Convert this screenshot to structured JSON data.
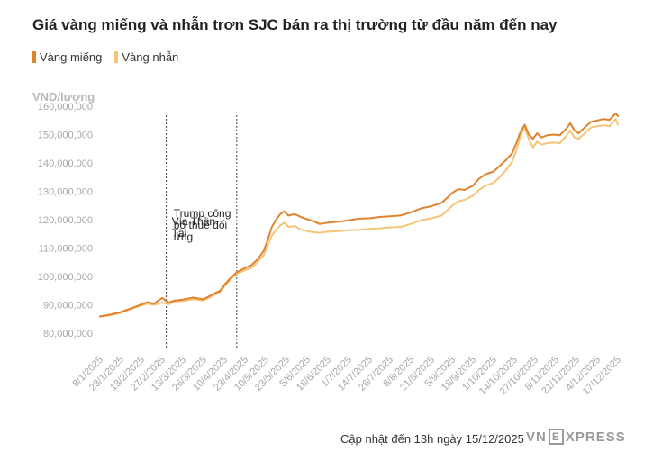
{
  "title": "Giá vàng miếng và nhẫn trơn SJC bán ra thị trường từ đầu năm đến nay",
  "legend": [
    {
      "label": "Vàng miếng",
      "color": "#e0832f"
    },
    {
      "label": "Vàng nhẫn",
      "color": "#f5c477"
    }
  ],
  "footer": "Cập nhật đến 13h ngày 15/12/2025",
  "brand": {
    "left": "VN",
    "box": "E",
    "right": "XPRESS"
  },
  "chart_data": {
    "type": "line",
    "title": "Giá vàng miếng và nhẫn trơn SJC bán ra thị trường từ đầu năm đến nay",
    "ylabel": "VND/lượng",
    "xlabel": "",
    "ylim": [
      75000000,
      160000000
    ],
    "y_ticks": [
      80000000,
      90000000,
      100000000,
      110000000,
      120000000,
      130000000,
      140000000,
      150000000,
      160000000
    ],
    "y_tick_labels": [
      "80,000,000",
      "90,000,000",
      "100,000,000",
      "110,000,000",
      "120,000,000",
      "130,000,000",
      "140,000,000",
      "150,000,000",
      "160,000,000"
    ],
    "x_tick_labels": [
      "8/1/2025",
      "23/1/2025",
      "13/2/2025",
      "27/2/2025",
      "13/3/2025",
      "26/3/2025",
      "10/4/2025",
      "23/4/2025",
      "10/5/2025",
      "23/5/2025",
      "5/6/2025",
      "18/6/2025",
      "1/7/2025",
      "14/7/2025",
      "26/7/2025",
      "8/8/2025",
      "21/8/2025",
      "5/9/2025",
      "18/9/2025",
      "1/10/2025",
      "14/10/2025",
      "27/10/2025",
      "8/11/2025",
      "21/11/2025",
      "4/12/2025",
      "17/12/2025"
    ],
    "x_range": [
      0,
      25
    ],
    "grid": false,
    "annotations": [
      {
        "x": 3.2,
        "text_lines": [
          "Vía Thần",
          "Tài"
        ]
      },
      {
        "x": 6.6,
        "text_lines": [
          "Trump công",
          "bố thuế đối",
          "ứng"
        ]
      }
    ],
    "series": [
      {
        "name": "Vàng miếng",
        "color": "#e0832f",
        "points": [
          [
            0,
            86000000
          ],
          [
            0.5,
            86600000
          ],
          [
            1,
            87500000
          ],
          [
            1.5,
            88800000
          ],
          [
            2,
            90200000
          ],
          [
            2.3,
            91000000
          ],
          [
            2.6,
            90400000
          ],
          [
            3,
            92500000
          ],
          [
            3.3,
            90800000
          ],
          [
            3.6,
            91600000
          ],
          [
            4,
            91900000
          ],
          [
            4.5,
            92600000
          ],
          [
            5,
            92000000
          ],
          [
            5.5,
            94000000
          ],
          [
            5.8,
            95000000
          ],
          [
            6,
            97000000
          ],
          [
            6.3,
            99500000
          ],
          [
            6.6,
            101500000
          ],
          [
            7,
            103000000
          ],
          [
            7.3,
            104000000
          ],
          [
            7.6,
            106000000
          ],
          [
            7.9,
            109000000
          ],
          [
            8.1,
            113000000
          ],
          [
            8.3,
            117500000
          ],
          [
            8.5,
            120000000
          ],
          [
            8.7,
            122000000
          ],
          [
            8.9,
            123000000
          ],
          [
            9.1,
            121500000
          ],
          [
            9.4,
            122000000
          ],
          [
            9.7,
            121000000
          ],
          [
            10,
            120200000
          ],
          [
            10.3,
            119500000
          ],
          [
            10.6,
            118500000
          ],
          [
            11,
            119000000
          ],
          [
            11.5,
            119300000
          ],
          [
            12,
            119800000
          ],
          [
            12.5,
            120400000
          ],
          [
            13,
            120500000
          ],
          [
            13.5,
            121000000
          ],
          [
            14,
            121200000
          ],
          [
            14.5,
            121500000
          ],
          [
            15,
            122600000
          ],
          [
            15.5,
            124000000
          ],
          [
            16,
            124800000
          ],
          [
            16.5,
            126000000
          ],
          [
            16.8,
            128000000
          ],
          [
            17,
            129500000
          ],
          [
            17.3,
            130800000
          ],
          [
            17.6,
            130500000
          ],
          [
            18,
            132000000
          ],
          [
            18.3,
            134500000
          ],
          [
            18.6,
            136000000
          ],
          [
            19,
            137000000
          ],
          [
            19.3,
            139000000
          ],
          [
            19.6,
            141000000
          ],
          [
            19.9,
            143500000
          ],
          [
            20.1,
            147000000
          ],
          [
            20.3,
            151000000
          ],
          [
            20.5,
            153500000
          ],
          [
            20.7,
            150000000
          ],
          [
            20.9,
            148500000
          ],
          [
            21.1,
            150500000
          ],
          [
            21.3,
            149000000
          ],
          [
            21.6,
            149800000
          ],
          [
            21.9,
            150000000
          ],
          [
            22.2,
            149800000
          ],
          [
            22.5,
            152000000
          ],
          [
            22.7,
            154000000
          ],
          [
            22.9,
            151500000
          ],
          [
            23.1,
            150500000
          ],
          [
            23.4,
            152500000
          ],
          [
            23.7,
            154500000
          ],
          [
            24,
            155000000
          ],
          [
            24.3,
            155500000
          ],
          [
            24.6,
            155200000
          ],
          [
            24.9,
            157500000
          ],
          [
            25,
            156500000
          ]
        ]
      },
      {
        "name": "Vàng nhẫn",
        "color": "#f5c477",
        "points": [
          [
            0,
            85800000
          ],
          [
            0.5,
            86400000
          ],
          [
            1,
            87200000
          ],
          [
            1.5,
            88600000
          ],
          [
            2,
            89800000
          ],
          [
            2.3,
            90500000
          ],
          [
            2.6,
            90000000
          ],
          [
            3,
            90900000
          ],
          [
            3.3,
            90200000
          ],
          [
            3.6,
            91200000
          ],
          [
            4,
            91400000
          ],
          [
            4.5,
            92000000
          ],
          [
            5,
            91600000
          ],
          [
            5.5,
            93500000
          ],
          [
            5.8,
            94500000
          ],
          [
            6,
            96500000
          ],
          [
            6.3,
            99000000
          ],
          [
            6.6,
            101000000
          ],
          [
            7,
            102200000
          ],
          [
            7.3,
            103000000
          ],
          [
            7.6,
            105000000
          ],
          [
            7.9,
            107500000
          ],
          [
            8.1,
            111000000
          ],
          [
            8.3,
            114500000
          ],
          [
            8.5,
            116500000
          ],
          [
            8.7,
            118000000
          ],
          [
            8.9,
            119000000
          ],
          [
            9.1,
            117500000
          ],
          [
            9.4,
            117800000
          ],
          [
            9.7,
            116500000
          ],
          [
            10,
            116000000
          ],
          [
            10.3,
            115600000
          ],
          [
            10.6,
            115400000
          ],
          [
            11,
            115800000
          ],
          [
            11.5,
            116000000
          ],
          [
            12,
            116300000
          ],
          [
            12.5,
            116500000
          ],
          [
            13,
            116800000
          ],
          [
            13.5,
            117000000
          ],
          [
            14,
            117300000
          ],
          [
            14.5,
            117500000
          ],
          [
            15,
            118500000
          ],
          [
            15.5,
            119800000
          ],
          [
            16,
            120500000
          ],
          [
            16.5,
            121500000
          ],
          [
            16.8,
            123500000
          ],
          [
            17,
            125000000
          ],
          [
            17.3,
            126500000
          ],
          [
            17.6,
            127000000
          ],
          [
            18,
            128500000
          ],
          [
            18.3,
            130500000
          ],
          [
            18.6,
            132000000
          ],
          [
            19,
            133000000
          ],
          [
            19.3,
            135000000
          ],
          [
            19.6,
            137500000
          ],
          [
            19.9,
            140500000
          ],
          [
            20.1,
            144500000
          ],
          [
            20.3,
            149500000
          ],
          [
            20.5,
            152500000
          ],
          [
            20.7,
            148500000
          ],
          [
            20.9,
            145500000
          ],
          [
            21.1,
            147500000
          ],
          [
            21.3,
            146500000
          ],
          [
            21.6,
            147000000
          ],
          [
            21.9,
            147200000
          ],
          [
            22.2,
            147000000
          ],
          [
            22.5,
            149500000
          ],
          [
            22.7,
            151500000
          ],
          [
            22.9,
            149000000
          ],
          [
            23.1,
            148500000
          ],
          [
            23.4,
            150500000
          ],
          [
            23.7,
            152500000
          ],
          [
            24,
            153000000
          ],
          [
            24.3,
            153300000
          ],
          [
            24.6,
            153000000
          ],
          [
            24.9,
            155500000
          ],
          [
            25,
            153500000
          ]
        ]
      }
    ]
  }
}
